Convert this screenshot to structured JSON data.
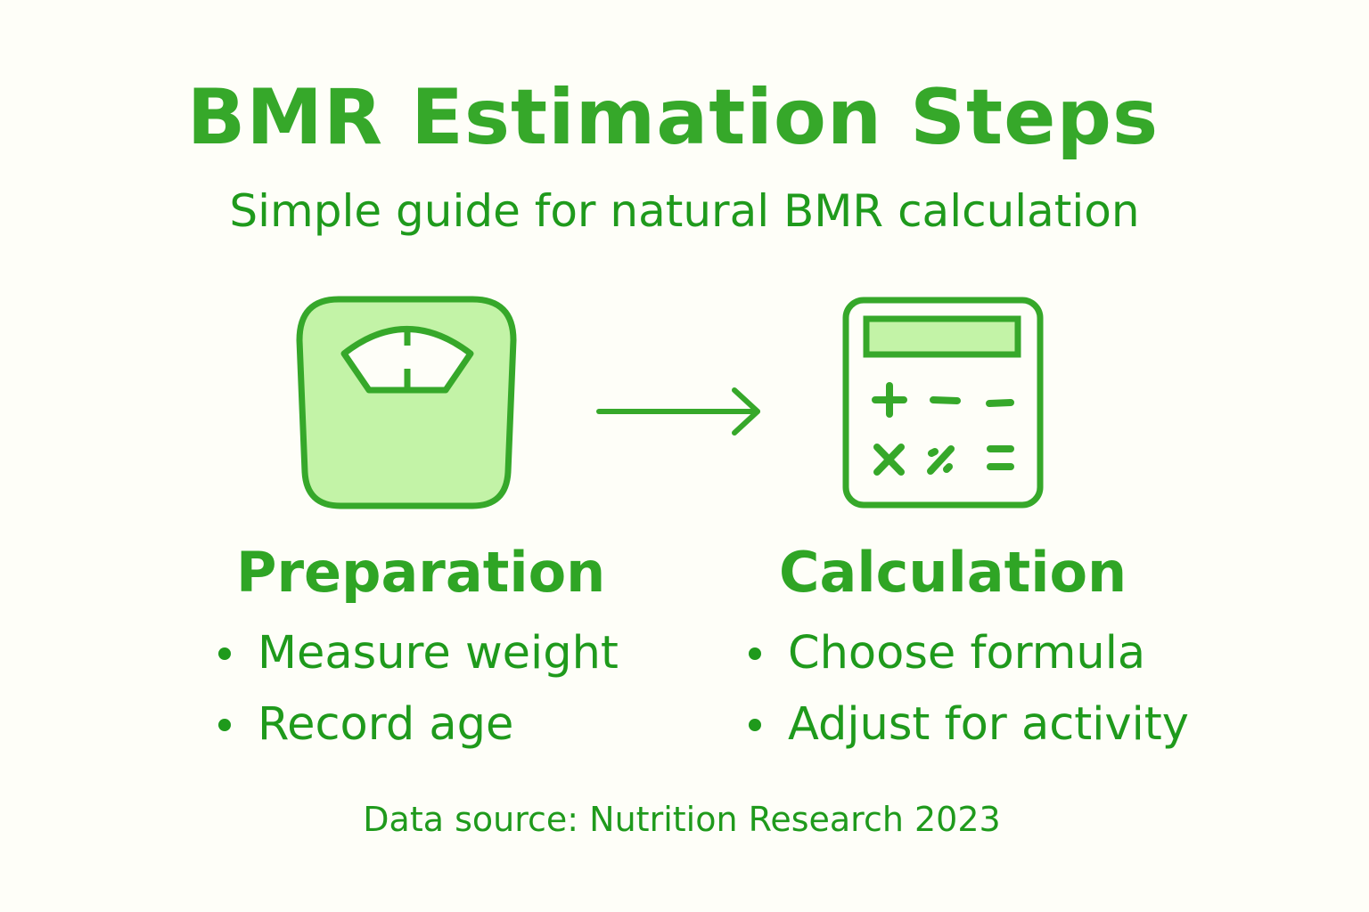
{
  "title": "BMR Estimation Steps",
  "subtitle": "Simple guide for natural BMR calculation",
  "colors": {
    "primary": "#36a82a",
    "text": "#1f9a1c",
    "fill": "#c3f3a7",
    "background": "#fefef8"
  },
  "steps": [
    {
      "icon": "bathroom-scale-icon",
      "heading": "Preparation",
      "items": [
        "Measure weight",
        "Record age"
      ]
    },
    {
      "icon": "calculator-icon",
      "heading": "Calculation",
      "items": [
        "Choose formula",
        "Adjust for activity"
      ]
    }
  ],
  "connector": "arrow-right-icon",
  "footer": "Data source: Nutrition Research 2023"
}
